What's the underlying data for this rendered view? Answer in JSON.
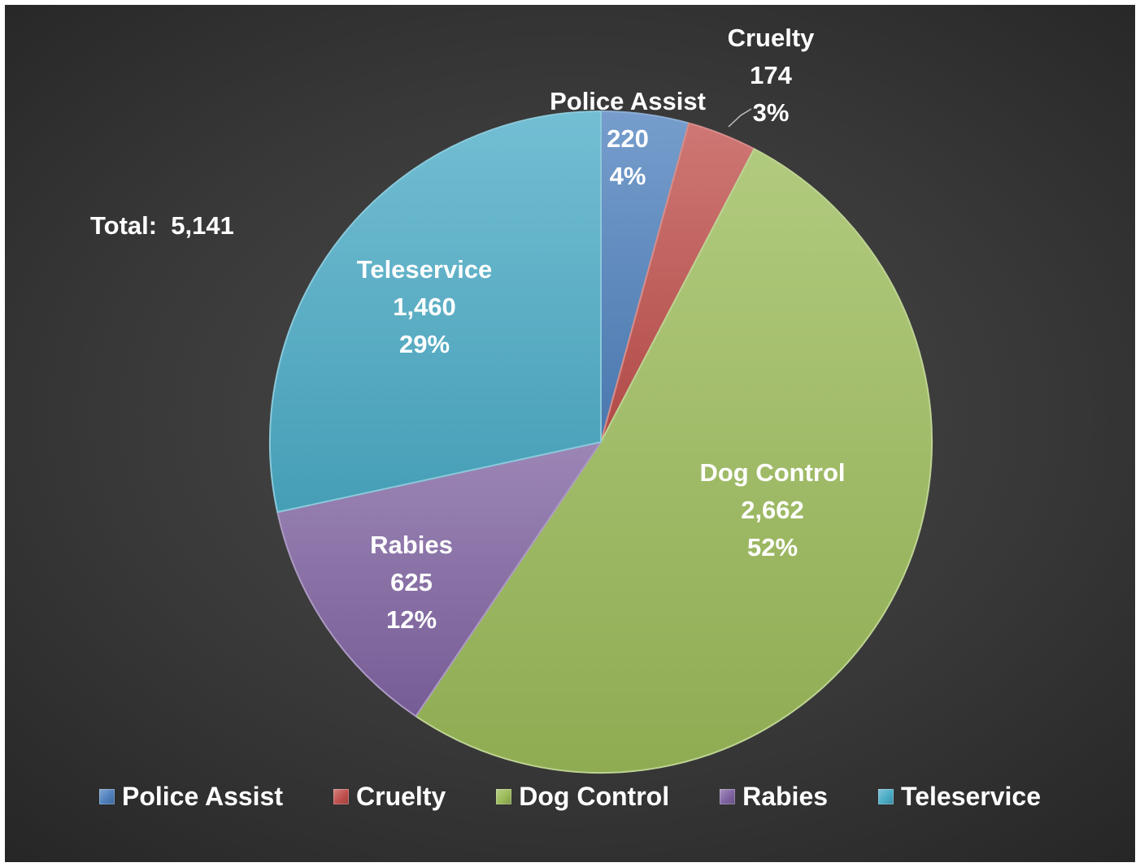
{
  "total_label": "Total:  5,141",
  "chart_data": {
    "type": "pie",
    "title": "",
    "slices": [
      {
        "name": "Police Assist",
        "value": 220,
        "value_label": "220",
        "percent_label": "4%",
        "color": "#4f81bd"
      },
      {
        "name": "Cruelty",
        "value": 174,
        "value_label": "174",
        "percent_label": "3%",
        "color": "#c0504d"
      },
      {
        "name": "Dog Control",
        "value": 2662,
        "value_label": "2,662",
        "percent_label": "52%",
        "color": "#9bbb59"
      },
      {
        "name": "Rabies",
        "value": 625,
        "value_label": "625",
        "percent_label": "12%",
        "color": "#8064a2"
      },
      {
        "name": "Teleservice",
        "value": 1460,
        "value_label": "1,460",
        "percent_label": "29%",
        "color": "#4bacc6"
      }
    ],
    "start_angle": "12 o'clock",
    "direction": "clockwise",
    "legend_position": "bottom",
    "total": 5141
  }
}
